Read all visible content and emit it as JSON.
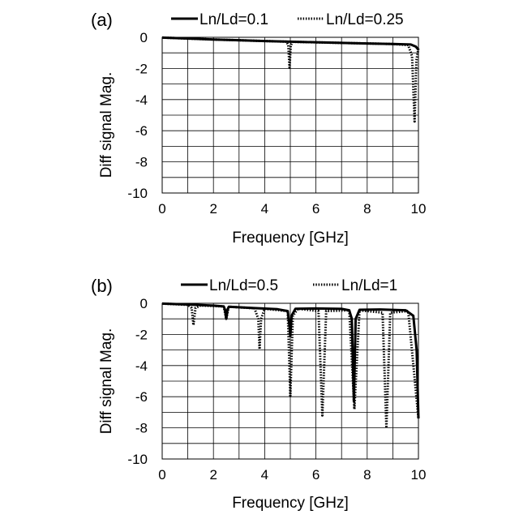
{
  "chart_data": [
    {
      "type": "line",
      "panel_label": "(a)",
      "xlabel": "Frequency [GHz]",
      "ylabel": "Diff signal Mag.",
      "xlim": [
        0,
        10
      ],
      "ylim": [
        -10,
        0
      ],
      "xticks": [
        0,
        2,
        4,
        6,
        8,
        10
      ],
      "yticks": [
        0,
        -2,
        -4,
        -6,
        -8,
        -10
      ],
      "grid": true,
      "legend_position": "top",
      "series": [
        {
          "name": "Ln/Ld=0.1",
          "style": "solid",
          "points": [
            [
              0,
              -0.02
            ],
            [
              1,
              -0.08
            ],
            [
              2,
              -0.14
            ],
            [
              3,
              -0.19
            ],
            [
              4,
              -0.24
            ],
            [
              5,
              -0.28
            ],
            [
              6,
              -0.32
            ],
            [
              7,
              -0.36
            ],
            [
              8,
              -0.4
            ],
            [
              9,
              -0.43
            ],
            [
              9.7,
              -0.46
            ],
            [
              9.9,
              -0.6
            ],
            [
              10,
              -0.8
            ]
          ]
        },
        {
          "name": "Ln/Ld=0.25",
          "style": "dotted",
          "points": [
            [
              0,
              -0.02
            ],
            [
              2,
              -0.14
            ],
            [
              4,
              -0.24
            ],
            [
              4.85,
              -0.28
            ],
            [
              4.92,
              -0.5
            ],
            [
              4.97,
              -1.95
            ],
            [
              5.02,
              -0.5
            ],
            [
              5.1,
              -0.29
            ],
            [
              7,
              -0.36
            ],
            [
              9,
              -0.43
            ],
            [
              9.6,
              -0.5
            ],
            [
              9.75,
              -1.2
            ],
            [
              9.85,
              -5.4
            ],
            [
              9.92,
              -1.5
            ],
            [
              10,
              -0.7
            ]
          ]
        }
      ]
    },
    {
      "type": "line",
      "panel_label": "(b)",
      "xlabel": "Frequency [GHz]",
      "ylabel": "Diff signal Mag.",
      "xlim": [
        0,
        10
      ],
      "ylim": [
        -10,
        0
      ],
      "xticks": [
        0,
        2,
        4,
        6,
        8,
        10
      ],
      "yticks": [
        0,
        -2,
        -4,
        -6,
        -8,
        -10
      ],
      "grid": true,
      "legend_position": "top",
      "series": [
        {
          "name": "Ln/Ld=0.5",
          "style": "solid",
          "points": [
            [
              0,
              -0.02
            ],
            [
              1,
              -0.08
            ],
            [
              2,
              -0.15
            ],
            [
              2.4,
              -0.2
            ],
            [
              2.45,
              -0.4
            ],
            [
              2.5,
              -1.0
            ],
            [
              2.55,
              -0.4
            ],
            [
              2.6,
              -0.22
            ],
            [
              3.5,
              -0.3
            ],
            [
              4.5,
              -0.38
            ],
            [
              4.9,
              -0.5
            ],
            [
              4.97,
              -1.5
            ],
            [
              5.0,
              -2.1
            ],
            [
              5.05,
              -0.8
            ],
            [
              5.2,
              -0.35
            ],
            [
              6,
              -0.33
            ],
            [
              7,
              -0.36
            ],
            [
              7.3,
              -0.45
            ],
            [
              7.4,
              -1.0
            ],
            [
              7.48,
              -6.3
            ],
            [
              7.55,
              -1.0
            ],
            [
              7.7,
              -0.42
            ],
            [
              8.5,
              -0.4
            ],
            [
              9.5,
              -0.45
            ],
            [
              9.8,
              -0.8
            ],
            [
              9.93,
              -3.0
            ],
            [
              10,
              -7.4
            ]
          ]
        },
        {
          "name": "Ln/Ld=1",
          "style": "dotted",
          "points": [
            [
              0,
              -0.02
            ],
            [
              1.0,
              -0.1
            ],
            [
              1.15,
              -0.3
            ],
            [
              1.22,
              -1.4
            ],
            [
              1.3,
              -0.3
            ],
            [
              1.5,
              -0.14
            ],
            [
              2.4,
              -0.2
            ],
            [
              2.5,
              -1.0
            ],
            [
              2.6,
              -0.22
            ],
            [
              3.6,
              -0.32
            ],
            [
              3.75,
              -1.0
            ],
            [
              3.8,
              -2.95
            ],
            [
              3.86,
              -1.0
            ],
            [
              4.0,
              -0.35
            ],
            [
              4.9,
              -0.5
            ],
            [
              5.0,
              -5.95
            ],
            [
              5.1,
              -0.8
            ],
            [
              5.3,
              -0.35
            ],
            [
              6.1,
              -0.5
            ],
            [
              6.25,
              -7.2
            ],
            [
              6.4,
              -0.5
            ],
            [
              7.3,
              -0.45
            ],
            [
              7.5,
              -6.8
            ],
            [
              7.7,
              -0.45
            ],
            [
              8.6,
              -0.6
            ],
            [
              8.75,
              -8.0
            ],
            [
              8.9,
              -0.6
            ],
            [
              9.6,
              -0.5
            ],
            [
              10,
              -7.4
            ]
          ]
        }
      ]
    }
  ]
}
